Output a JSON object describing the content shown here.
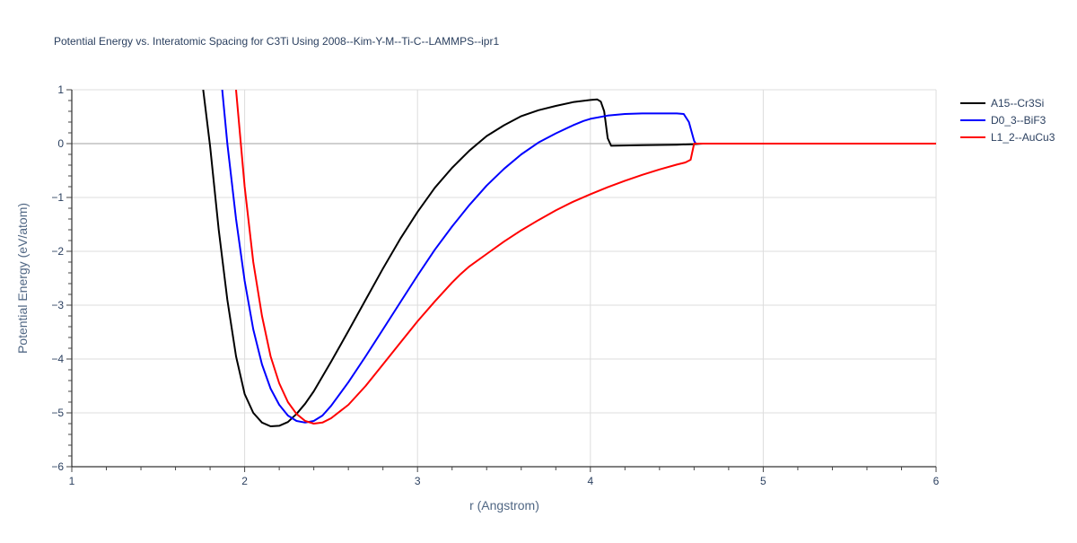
{
  "chart_data": {
    "type": "line",
    "title": "Potential Energy vs. Interatomic Spacing for C3Ti Using 2008--Kim-Y-M--Ti-C--LAMMPS--ipr1",
    "xlabel": "r (Angstrom)",
    "ylabel": "Potential Energy (eV/atom)",
    "xlim": [
      1,
      6
    ],
    "ylim": [
      -6,
      1
    ],
    "xticks": [
      1,
      2,
      3,
      4,
      5,
      6
    ],
    "xtick_labels": [
      "1",
      "2",
      "3",
      "4",
      "5",
      "6"
    ],
    "yticks": [
      -6,
      -5,
      -4,
      -3,
      -2,
      -1,
      0,
      1
    ],
    "ytick_labels": [
      "−6",
      "−5",
      "−4",
      "−3",
      "−2",
      "−1",
      "0",
      "1"
    ],
    "grid": true,
    "legend_position": "top-right",
    "series": [
      {
        "name": "A15--Cr3Si",
        "color": "#000000",
        "points": [
          [
            1.76,
            1.0
          ],
          [
            1.8,
            -0.05
          ],
          [
            1.85,
            -1.6
          ],
          [
            1.9,
            -2.9
          ],
          [
            1.95,
            -3.95
          ],
          [
            2.0,
            -4.65
          ],
          [
            2.05,
            -5.0
          ],
          [
            2.1,
            -5.18
          ],
          [
            2.15,
            -5.25
          ],
          [
            2.2,
            -5.24
          ],
          [
            2.25,
            -5.17
          ],
          [
            2.3,
            -5.02
          ],
          [
            2.35,
            -4.83
          ],
          [
            2.4,
            -4.6
          ],
          [
            2.5,
            -4.05
          ],
          [
            2.6,
            -3.48
          ],
          [
            2.7,
            -2.9
          ],
          [
            2.8,
            -2.32
          ],
          [
            2.9,
            -1.77
          ],
          [
            3.0,
            -1.27
          ],
          [
            3.1,
            -0.82
          ],
          [
            3.2,
            -0.45
          ],
          [
            3.3,
            -0.13
          ],
          [
            3.4,
            0.14
          ],
          [
            3.5,
            0.34
          ],
          [
            3.6,
            0.51
          ],
          [
            3.7,
            0.62
          ],
          [
            3.8,
            0.7
          ],
          [
            3.9,
            0.77
          ],
          [
            4.0,
            0.81
          ],
          [
            4.04,
            0.82
          ],
          [
            4.06,
            0.78
          ],
          [
            4.08,
            0.6
          ],
          [
            4.1,
            0.1
          ],
          [
            4.12,
            -0.04
          ],
          [
            4.3,
            -0.03
          ],
          [
            4.5,
            -0.02
          ],
          [
            4.6,
            -0.01
          ],
          [
            4.65,
            0.0
          ],
          [
            5.0,
            0.0
          ],
          [
            6.0,
            0.0
          ]
        ]
      },
      {
        "name": "D0_3--BiF3",
        "color": "#0000ff",
        "points": [
          [
            1.87,
            1.0
          ],
          [
            1.9,
            0.0
          ],
          [
            1.95,
            -1.4
          ],
          [
            2.0,
            -2.55
          ],
          [
            2.05,
            -3.45
          ],
          [
            2.1,
            -4.1
          ],
          [
            2.15,
            -4.55
          ],
          [
            2.2,
            -4.85
          ],
          [
            2.25,
            -5.05
          ],
          [
            2.3,
            -5.15
          ],
          [
            2.35,
            -5.18
          ],
          [
            2.4,
            -5.15
          ],
          [
            2.45,
            -5.05
          ],
          [
            2.5,
            -4.87
          ],
          [
            2.6,
            -4.43
          ],
          [
            2.7,
            -3.95
          ],
          [
            2.8,
            -3.45
          ],
          [
            2.9,
            -2.95
          ],
          [
            3.0,
            -2.45
          ],
          [
            3.1,
            -1.97
          ],
          [
            3.2,
            -1.54
          ],
          [
            3.3,
            -1.14
          ],
          [
            3.4,
            -0.78
          ],
          [
            3.5,
            -0.47
          ],
          [
            3.6,
            -0.2
          ],
          [
            3.7,
            0.02
          ],
          [
            3.8,
            0.19
          ],
          [
            3.9,
            0.34
          ],
          [
            3.96,
            0.42
          ],
          [
            4.0,
            0.46
          ],
          [
            4.1,
            0.52
          ],
          [
            4.2,
            0.55
          ],
          [
            4.3,
            0.56
          ],
          [
            4.4,
            0.56
          ],
          [
            4.5,
            0.56
          ],
          [
            4.54,
            0.55
          ],
          [
            4.57,
            0.4
          ],
          [
            4.6,
            0.05
          ],
          [
            4.61,
            0.0
          ],
          [
            5.0,
            0.0
          ],
          [
            6.0,
            0.0
          ]
        ]
      },
      {
        "name": "L1_2--AuCu3",
        "color": "#ff0000",
        "points": [
          [
            1.95,
            1.0
          ],
          [
            2.0,
            -0.8
          ],
          [
            2.05,
            -2.2
          ],
          [
            2.1,
            -3.2
          ],
          [
            2.15,
            -3.95
          ],
          [
            2.2,
            -4.45
          ],
          [
            2.25,
            -4.8
          ],
          [
            2.3,
            -5.02
          ],
          [
            2.35,
            -5.15
          ],
          [
            2.4,
            -5.2
          ],
          [
            2.45,
            -5.18
          ],
          [
            2.5,
            -5.1
          ],
          [
            2.6,
            -4.85
          ],
          [
            2.7,
            -4.5
          ],
          [
            2.8,
            -4.1
          ],
          [
            2.9,
            -3.7
          ],
          [
            3.0,
            -3.3
          ],
          [
            3.1,
            -2.93
          ],
          [
            3.2,
            -2.58
          ],
          [
            3.25,
            -2.42
          ],
          [
            3.3,
            -2.28
          ],
          [
            3.4,
            -2.05
          ],
          [
            3.5,
            -1.82
          ],
          [
            3.6,
            -1.61
          ],
          [
            3.7,
            -1.42
          ],
          [
            3.8,
            -1.24
          ],
          [
            3.9,
            -1.08
          ],
          [
            4.0,
            -0.94
          ],
          [
            4.1,
            -0.81
          ],
          [
            4.2,
            -0.69
          ],
          [
            4.3,
            -0.58
          ],
          [
            4.4,
            -0.48
          ],
          [
            4.5,
            -0.39
          ],
          [
            4.55,
            -0.35
          ],
          [
            4.58,
            -0.3
          ],
          [
            4.6,
            0.0
          ],
          [
            5.0,
            0.0
          ],
          [
            6.0,
            0.0
          ]
        ]
      }
    ]
  }
}
